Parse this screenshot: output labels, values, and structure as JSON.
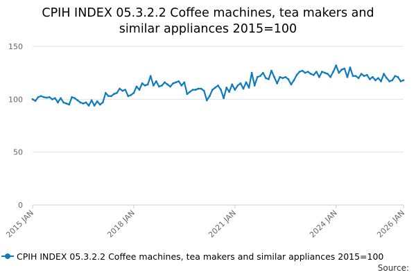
{
  "title_line1": "CPIH INDEX 05.3.2.2 Coffee machines, tea makers and",
  "title_line2": "similar appliances 2015=100",
  "source_label": "Source:",
  "series_color": "#0e7bbd",
  "chart_data": {
    "type": "line",
    "title": "CPIH INDEX 05.3.2.2 Coffee machines, tea makers and similar appliances 2015=100",
    "xlabel": "",
    "ylabel": "",
    "ylim": [
      0,
      150
    ],
    "yticks": [
      0,
      50,
      100,
      150
    ],
    "xticks": [
      "2015 JAN",
      "2018 JAN",
      "2021 JAN",
      "2024 JAN",
      "2026 JAN"
    ],
    "grid": "horizontal",
    "legend_position": "bottom",
    "series": [
      {
        "name": "CPIH INDEX 05.3.2.2 Coffee machines, tea makers and similar appliances 2015=100",
        "x": [
          "2015 JAN",
          "2015 FEB",
          "2015 MAR",
          "2015 APR",
          "2015 MAY",
          "2015 JUN",
          "2015 JUL",
          "2015 AUG",
          "2015 SEP",
          "2015 OCT",
          "2015 NOV",
          "2015 DEC",
          "2016 JAN",
          "2016 FEB",
          "2016 MAR",
          "2016 APR",
          "2016 MAY",
          "2016 JUN",
          "2016 JUL",
          "2016 AUG",
          "2016 SEP",
          "2016 OCT",
          "2016 NOV",
          "2016 DEC",
          "2017 JAN",
          "2017 FEB",
          "2017 MAR",
          "2017 APR",
          "2017 MAY",
          "2017 JUN",
          "2017 JUL",
          "2017 AUG",
          "2017 SEP",
          "2017 OCT",
          "2017 NOV",
          "2017 DEC",
          "2018 JAN",
          "2018 FEB",
          "2018 MAR",
          "2018 APR",
          "2018 MAY",
          "2018 JUN",
          "2018 JUL",
          "2018 AUG",
          "2018 SEP",
          "2018 OCT",
          "2018 NOV",
          "2018 DEC",
          "2019 JAN",
          "2019 FEB",
          "2019 MAR",
          "2019 APR",
          "2019 MAY",
          "2019 JUN",
          "2019 JUL",
          "2019 AUG",
          "2019 SEP",
          "2019 OCT",
          "2019 NOV",
          "2019 DEC",
          "2020 JAN",
          "2020 FEB",
          "2020 MAR",
          "2020 APR",
          "2020 MAY",
          "2020 JUN",
          "2020 JUL",
          "2020 AUG",
          "2020 SEP",
          "2020 OCT",
          "2020 NOV",
          "2020 DEC",
          "2021 JAN",
          "2021 FEB",
          "2021 MAR",
          "2021 APR",
          "2021 MAY",
          "2021 JUN",
          "2021 JUL",
          "2021 AUG",
          "2021 SEP",
          "2021 OCT",
          "2021 NOV",
          "2021 DEC",
          "2022 JAN",
          "2022 FEB",
          "2022 MAR",
          "2022 APR",
          "2022 MAY",
          "2022 JUN",
          "2022 JUL",
          "2022 AUG",
          "2022 SEP",
          "2022 OCT",
          "2022 NOV",
          "2022 DEC",
          "2023 JAN",
          "2023 FEB",
          "2023 MAR",
          "2023 APR",
          "2023 MAY",
          "2023 JUN",
          "2023 JUL",
          "2023 AUG",
          "2023 SEP",
          "2023 OCT",
          "2023 NOV",
          "2023 DEC",
          "2024 JAN",
          "2024 FEB",
          "2024 MAR",
          "2024 APR",
          "2024 MAY",
          "2024 JUN",
          "2024 JUL",
          "2024 AUG",
          "2024 SEP",
          "2024 OCT",
          "2024 NOV",
          "2024 DEC",
          "2025 JAN",
          "2025 FEB",
          "2025 MAR",
          "2025 APR",
          "2025 MAY",
          "2025 JUN",
          "2025 JUL",
          "2025 AUG",
          "2025 SEP",
          "2025 OCT",
          "2025 NOV",
          "2025 DEC",
          "2026 JAN"
        ],
        "values": [
          100,
          98.5,
          102,
          103,
          102,
          101.5,
          102,
          100,
          101,
          97,
          101,
          97,
          96,
          95,
          102,
          101,
          99,
          97,
          96,
          97,
          94,
          99,
          94,
          98,
          95,
          97,
          106,
          103,
          103,
          105,
          106,
          110,
          108,
          109,
          103,
          104,
          106,
          112,
          109,
          115,
          113,
          114,
          122,
          113,
          117,
          112,
          113,
          116,
          114,
          112,
          115,
          116,
          117,
          113,
          116,
          105,
          107,
          109,
          109,
          110,
          110,
          108,
          99,
          103,
          109,
          111,
          113,
          109,
          101,
          111,
          107,
          114,
          109,
          113,
          115,
          110,
          116,
          111,
          125,
          113,
          121,
          122,
          125,
          120,
          119,
          127,
          121,
          115,
          121,
          120,
          121,
          119,
          114,
          118,
          123,
          126,
          127,
          125,
          126,
          124,
          123,
          126,
          121,
          126,
          125,
          124,
          121,
          126,
          132,
          125,
          128,
          129,
          121,
          130,
          122,
          122,
          120,
          124,
          122,
          123,
          119,
          121,
          118,
          120,
          117,
          124,
          120,
          117,
          118,
          122,
          121,
          117,
          118
        ]
      }
    ]
  }
}
